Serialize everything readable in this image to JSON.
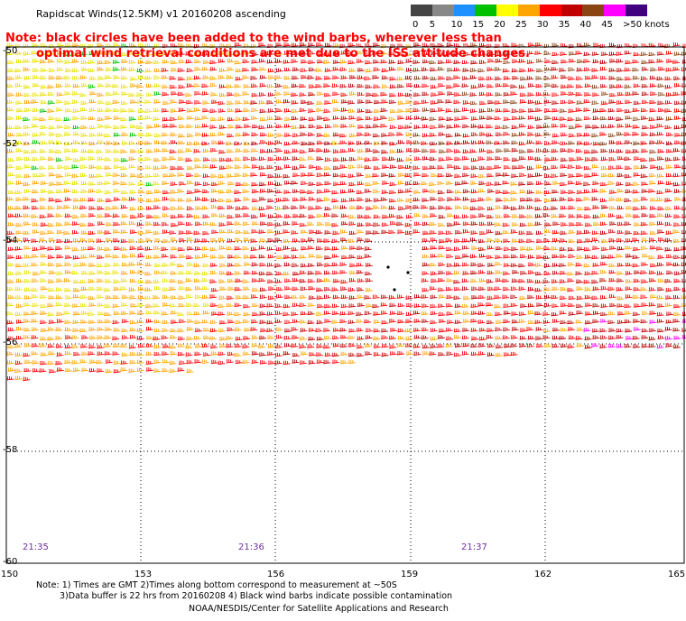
{
  "header": {
    "title": "Rapidscat Winds(12.5KM) v1 20160208 ascending",
    "note_line1": "Note: black circles have been added to the wind barbs, wherever less than",
    "note_line2": "optimal wind retrieval conditions are met due to the ISS attitude changes."
  },
  "legend": {
    "unit": "knots",
    "bins": [
      {
        "label": "0",
        "color": "#444444"
      },
      {
        "label": "5",
        "color": "#888888"
      },
      {
        "label": "10",
        "color": "#1e90ff"
      },
      {
        "label": "15",
        "color": "#00c000"
      },
      {
        "label": "20",
        "color": "#ffff00"
      },
      {
        "label": "25",
        "color": "#ffa500"
      },
      {
        "label": "30",
        "color": "#ff0000"
      },
      {
        "label": "35",
        "color": "#c00000"
      },
      {
        "label": "40",
        "color": "#8b4513"
      },
      {
        "label": "45",
        "color": "#ff00ff"
      },
      {
        "label": ">50",
        "color": "#400080"
      }
    ],
    "last_label": ">50 knots"
  },
  "axes": {
    "lat_labels": [
      "-50",
      "-52",
      "-54",
      "-56",
      "-58",
      "-60"
    ],
    "lon_labels": [
      "150",
      "153",
      "156",
      "159",
      "162",
      "165"
    ]
  },
  "times": [
    "21:35",
    "21:36",
    "21:37"
  ],
  "footer": {
    "line1": "Note: 1) Times are GMT 2)Times along bottom correspond to measurement at ~50S",
    "line2": "3)Data buffer is 22 hrs from 20160208 4) Black wind barbs indicate possible contamination",
    "credit": "NOAA/NESDIS/Center for Satellite Applications and Research"
  }
}
